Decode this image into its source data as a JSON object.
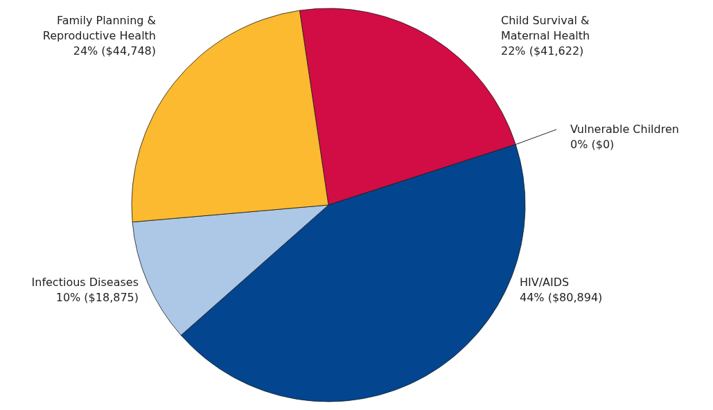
{
  "chart_data": {
    "type": "pie",
    "categories": [
      "Child Survival & Maternal Health",
      "Vulnerable Children",
      "HIV/AIDS",
      "Infectious Diseases",
      "Family Planning & Reproductive Health"
    ],
    "values": [
      41622,
      0,
      80894,
      18875,
      44748
    ],
    "value_labels": [
      "22% ($41,622)",
      "0% ($0)",
      "44% ($80,894)",
      "10% ($18,875)",
      "24% ($44,748)"
    ],
    "colors": [
      "#d20c45",
      "#222222",
      "#03468f",
      "#adc8e6",
      "#fbba2f"
    ]
  }
}
